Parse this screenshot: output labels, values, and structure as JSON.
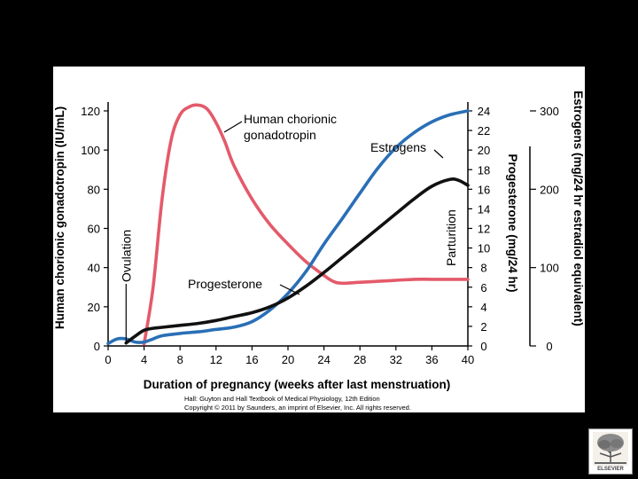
{
  "chart_data": {
    "type": "line",
    "title": "",
    "xlabel": "Duration of pregnancy (weeks after last menstruation)",
    "x_ticks": [
      0,
      4,
      8,
      12,
      16,
      20,
      24,
      28,
      32,
      36,
      40
    ],
    "xlim": [
      0,
      40
    ],
    "y_axes": {
      "left": {
        "label": "Human chorionic gonadotropin (IU/mL)",
        "ticks": [
          0,
          20,
          40,
          60,
          80,
          100,
          120
        ],
        "lim": [
          0,
          120
        ]
      },
      "right1": {
        "label": "Progesterone (mg/24 hr)",
        "ticks": [
          0,
          2,
          4,
          6,
          8,
          10,
          12,
          14,
          16,
          18,
          20,
          22,
          24
        ],
        "lim": [
          0,
          24
        ]
      },
      "right2": {
        "label": "Estrogens (mg/24 hr estradiol equivalent)",
        "ticks": [
          0,
          100,
          200,
          300
        ],
        "lim": [
          0,
          300
        ]
      }
    },
    "series": [
      {
        "name": "Human chorionic gonadotropin",
        "axis": "left",
        "color": "#e45a6a",
        "x": [
          4,
          5,
          6,
          7,
          8,
          9,
          10,
          11,
          12,
          13,
          14,
          16,
          18,
          20,
          22,
          24,
          25,
          26,
          28,
          30,
          32,
          34,
          36,
          38,
          40
        ],
        "y": [
          1,
          30,
          75,
          105,
          118,
          122,
          123,
          121,
          114,
          104,
          92,
          75,
          62,
          52,
          43,
          36,
          33,
          32,
          32.5,
          33,
          33.5,
          34,
          34,
          34,
          34
        ]
      },
      {
        "name": "Progesterone",
        "axis": "right1",
        "color": "#111111",
        "x": [
          2,
          3,
          4,
          5,
          6,
          8,
          10,
          12,
          14,
          16,
          18,
          20,
          22,
          24,
          26,
          28,
          30,
          32,
          34,
          36,
          38,
          39,
          40
        ],
        "y": [
          0.3,
          1.0,
          1.6,
          1.8,
          1.9,
          2.1,
          2.3,
          2.6,
          3.0,
          3.4,
          4.0,
          4.9,
          6.1,
          7.5,
          9.0,
          10.5,
          12.0,
          13.5,
          15.0,
          16.3,
          17.0,
          16.9,
          16.4
        ]
      },
      {
        "name": "Estrogens",
        "axis": "right2",
        "color": "#2a6fb6",
        "x": [
          0,
          1,
          2,
          3,
          4,
          5,
          6,
          8,
          10,
          12,
          14,
          16,
          18,
          20,
          22,
          24,
          26,
          28,
          30,
          32,
          34,
          36,
          38,
          40
        ],
        "y": [
          3,
          9,
          9,
          5,
          5,
          9,
          13,
          16,
          18,
          21,
          24,
          31,
          46,
          67,
          95,
          130,
          162,
          195,
          227,
          253,
          272,
          286,
          295,
          300
        ]
      }
    ],
    "annotations": {
      "hcg": [
        "Human chorionic",
        "gonadotropin"
      ],
      "estrogens": "Estrogens",
      "progesterone": "Progesterone",
      "ovulation": "Ovulation",
      "parturition": "Parturition"
    },
    "markers": {
      "ovulation_week": 2,
      "parturition_week": 40
    },
    "colors": {
      "hcg": "#e45a6a",
      "progesterone": "#111111",
      "estrogens": "#2a6fb6"
    }
  },
  "credit": {
    "line1": "Hall: Guyton and Hall Textbook of Medical Physiology, 12th Edition",
    "line2": "Copyright © 2011 by Saunders, an imprint of Elsevier, Inc. All rights reserved."
  },
  "publisher": {
    "name": "ELSEVIER"
  }
}
